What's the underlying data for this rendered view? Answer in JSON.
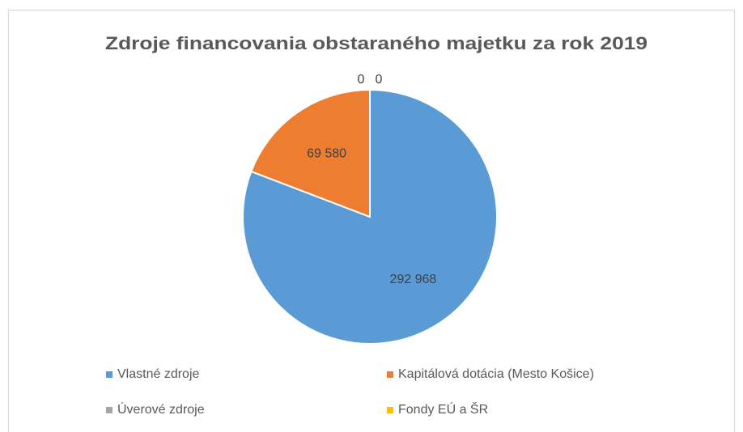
{
  "chart_data": {
    "type": "pie",
    "title": "Zdroje financovania obstaraného majetku za rok 2019",
    "categories": [
      "Vlastné zdroje",
      "Kapitálová dotácia (Mesto Košice)",
      "Úverové zdroje",
      "Fondy EÚ a ŠR"
    ],
    "values": [
      292968,
      69580,
      0,
      0
    ],
    "value_labels": [
      "292 968",
      "69 580",
      "0",
      "0"
    ],
    "colors": [
      "#5b9bd5",
      "#ed7d31",
      "#a5a5a5",
      "#ffc000"
    ],
    "legend": "bottom"
  }
}
